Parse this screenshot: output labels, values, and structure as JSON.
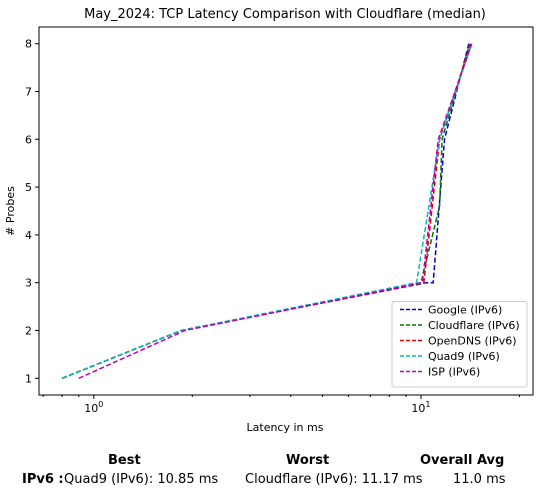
{
  "chart_data": {
    "type": "line",
    "title": "May_2024: TCP Latency Comparison with Cloudflare (median)",
    "xlabel": "Latency in ms",
    "ylabel": "# Probes",
    "xscale": "log",
    "xlim": [
      0.68,
      22
    ],
    "ylim": [
      0.65,
      8.35
    ],
    "x_ticks": [
      {
        "value": 1,
        "label": "10^0"
      },
      {
        "value": 10,
        "label": "10^1"
      }
    ],
    "y_ticks": [
      1,
      2,
      3,
      4,
      5,
      6,
      7,
      8
    ],
    "grid": false,
    "legend_position": "lower-right",
    "series": [
      {
        "name": "Google (IPv6)",
        "color": "#0000cc",
        "x": [
          0.8,
          1.85,
          10.4,
          10.9,
          11.8,
          14.0
        ],
        "y": [
          1,
          2,
          3,
          3,
          6,
          8
        ]
      },
      {
        "name": "Cloudflare (IPv6)",
        "color": "#007700",
        "x": [
          0.8,
          1.85,
          10.0,
          11.4,
          11.6,
          14.1
        ],
        "y": [
          1,
          2,
          3,
          4.6,
          6,
          8
        ]
      },
      {
        "name": "OpenDNS (IPv6)",
        "color": "#dd0000",
        "x": [
          0.8,
          1.85,
          10.2,
          11.4,
          14.2
        ],
        "y": [
          1,
          2,
          3,
          6,
          8
        ]
      },
      {
        "name": "Quad9 (IPv6)",
        "color": "#00bbbb",
        "x": [
          0.8,
          1.85,
          9.7,
          11.4,
          14.3
        ],
        "y": [
          1,
          2,
          3,
          6,
          8
        ]
      },
      {
        "name": "ISP (IPv6)",
        "color": "#bb00bb",
        "x": [
          0.9,
          1.9,
          10.1,
          11.3,
          14.3
        ],
        "y": [
          1,
          2,
          3,
          6,
          8
        ]
      }
    ]
  },
  "summary": {
    "headers": {
      "best": "Best",
      "worst": "Worst",
      "avg": "Overall Avg"
    },
    "row_label": "IPv6 :",
    "best": "Quad9 (IPv6): 10.85 ms",
    "worst": "Cloudflare (IPv6): 11.17 ms",
    "avg": "11.0 ms"
  }
}
